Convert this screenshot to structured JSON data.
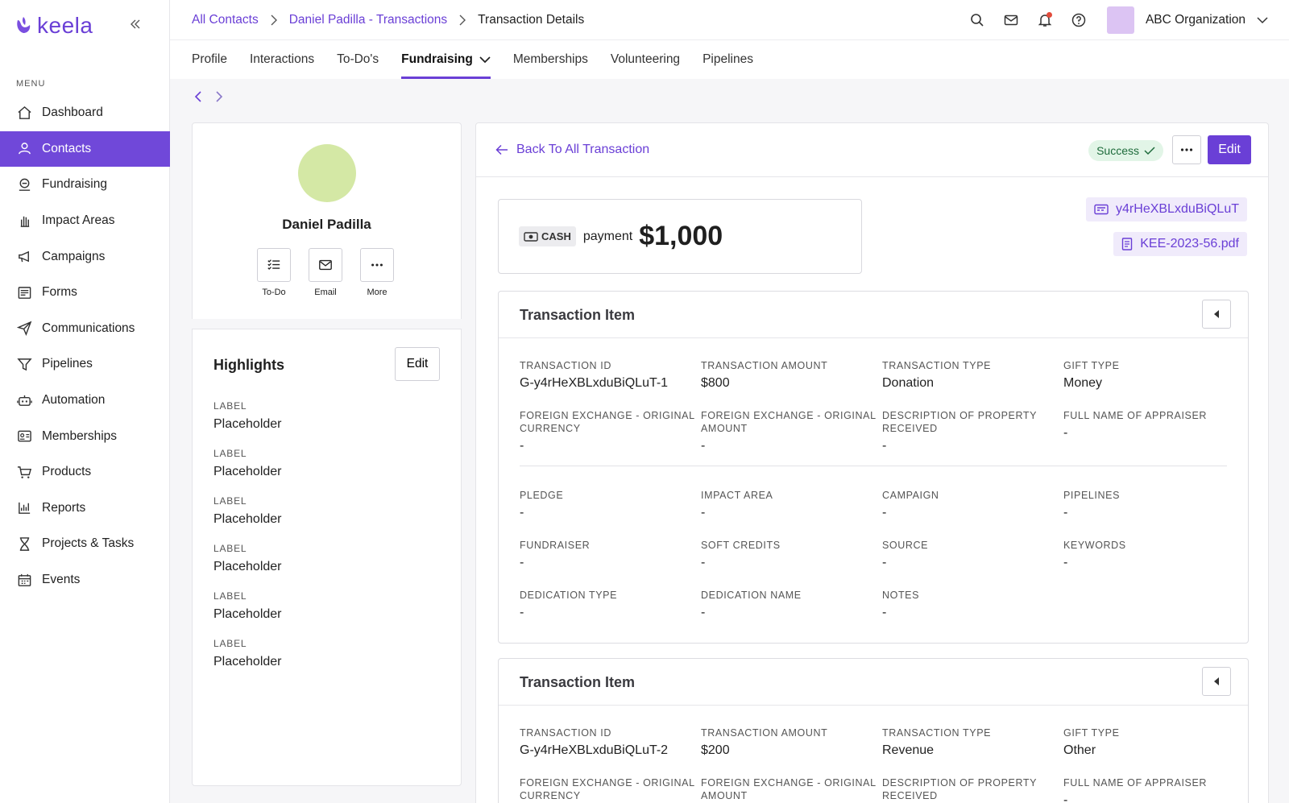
{
  "app": {
    "logo_text": "keela"
  },
  "sidebar": {
    "menu_label": "MENU",
    "items": [
      {
        "label": "Dashboard",
        "icon": "home-icon"
      },
      {
        "label": "Contacts",
        "icon": "user-icon",
        "active": true
      },
      {
        "label": "Fundraising",
        "icon": "donation-icon"
      },
      {
        "label": "Impact Areas",
        "icon": "hand-icon"
      },
      {
        "label": "Campaigns",
        "icon": "megaphone-icon"
      },
      {
        "label": "Forms",
        "icon": "form-icon"
      },
      {
        "label": "Communications",
        "icon": "paper-plane-icon"
      },
      {
        "label": "Pipelines",
        "icon": "funnel-icon"
      },
      {
        "label": "Automation",
        "icon": "robot-icon"
      },
      {
        "label": "Memberships",
        "icon": "id-card-icon"
      },
      {
        "label": "Products",
        "icon": "cart-icon"
      },
      {
        "label": "Reports",
        "icon": "chart-icon"
      },
      {
        "label": "Projects & Tasks",
        "icon": "hourglass-icon"
      },
      {
        "label": "Events",
        "icon": "calendar-icon"
      }
    ]
  },
  "breadcrumb": {
    "items": [
      "All Contacts",
      "Daniel Padilla - Transactions"
    ],
    "current": "Transaction Details"
  },
  "header": {
    "org_name": "ABC Organization"
  },
  "tabs": [
    {
      "label": "Profile"
    },
    {
      "label": "Interactions"
    },
    {
      "label": "To-Do's"
    },
    {
      "label": "Fundraising",
      "active": true,
      "dropdown": true
    },
    {
      "label": "Memberships"
    },
    {
      "label": "Volunteering"
    },
    {
      "label": "Pipelines"
    }
  ],
  "profile": {
    "name": "Daniel Padilla",
    "avatar_color": "#d4e8a5",
    "actions": [
      {
        "label": "To-Do",
        "icon": "checklist-icon"
      },
      {
        "label": "Email",
        "icon": "mail-icon"
      },
      {
        "label": "More",
        "icon": "more-icon"
      }
    ]
  },
  "highlights": {
    "title": "Highlights",
    "edit_label": "Edit",
    "items": [
      {
        "label": "LABEL",
        "value": "Placeholder"
      },
      {
        "label": "LABEL",
        "value": "Placeholder"
      },
      {
        "label": "LABEL",
        "value": "Placeholder"
      },
      {
        "label": "LABEL",
        "value": "Placeholder"
      },
      {
        "label": "LABEL",
        "value": "Placeholder"
      },
      {
        "label": "LABEL",
        "value": "Placeholder"
      }
    ]
  },
  "transaction": {
    "back_label": "Back To All Transaction",
    "status": "Success",
    "edit_label": "Edit",
    "payment_method": "CASH",
    "payment_word": "payment",
    "amount": "$1,000",
    "reference": "y4rHeXBLxduBiQLuT",
    "receipt_file": "KEE-2023-56.pdf",
    "items": [
      {
        "title": "Transaction Item",
        "fields_top": [
          {
            "label": "TRANSACTION ID",
            "value": "G-y4rHeXBLxduBiQLuT-1"
          },
          {
            "label": "TRANSACTION AMOUNT",
            "value": "$800"
          },
          {
            "label": "TRANSACTION TYPE",
            "value": "Donation"
          },
          {
            "label": "GIFT TYPE",
            "value": "Money"
          },
          {
            "label": "FOREIGN EXCHANGE - ORIGINAL CURRENCY",
            "value": "-"
          },
          {
            "label": "FOREIGN EXCHANGE - ORIGINAL AMOUNT",
            "value": "-"
          },
          {
            "label": "DESCRIPTION OF PROPERTY RECEIVED",
            "value": "-"
          },
          {
            "label": "FULL NAME OF APPRAISER",
            "value": "-"
          }
        ],
        "fields_bottom": [
          {
            "label": "PLEDGE",
            "value": "-"
          },
          {
            "label": "IMPACT AREA",
            "value": "-"
          },
          {
            "label": "CAMPAIGN",
            "value": "-"
          },
          {
            "label": "PIPELINES",
            "value": "-"
          },
          {
            "label": "FUNDRAISER",
            "value": "-"
          },
          {
            "label": "SOFT CREDITS",
            "value": "-"
          },
          {
            "label": "SOURCE",
            "value": "-"
          },
          {
            "label": "KEYWORDS",
            "value": "-"
          },
          {
            "label": "DEDICATION TYPE",
            "value": "-"
          },
          {
            "label": "DEDICATION NAME",
            "value": "-"
          },
          {
            "label": "NOTES",
            "value": "-"
          }
        ]
      },
      {
        "title": "Transaction Item",
        "fields_top": [
          {
            "label": "TRANSACTION ID",
            "value": "G-y4rHeXBLxduBiQLuT-2"
          },
          {
            "label": "TRANSACTION AMOUNT",
            "value": "$200"
          },
          {
            "label": "TRANSACTION TYPE",
            "value": "Revenue"
          },
          {
            "label": "GIFT TYPE",
            "value": "Other"
          },
          {
            "label": "FOREIGN EXCHANGE - ORIGINAL CURRENCY",
            "value": "-"
          },
          {
            "label": "FOREIGN EXCHANGE - ORIGINAL AMOUNT",
            "value": "-"
          },
          {
            "label": "DESCRIPTION OF PROPERTY RECEIVED",
            "value": "-"
          },
          {
            "label": "FULL NAME OF APPRAISER",
            "value": "-"
          }
        ]
      }
    ]
  },
  "colors": {
    "accent": "#6a3fd6",
    "success_bg": "#e2f5e7",
    "success_text": "#1e6b3b"
  }
}
